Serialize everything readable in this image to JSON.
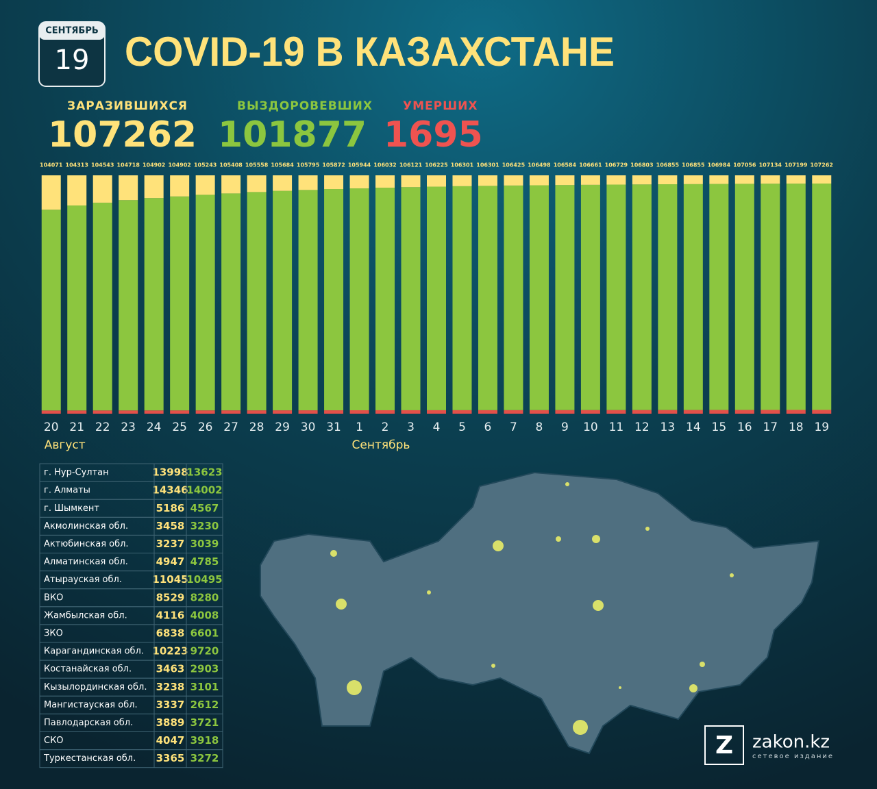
{
  "chart_data": {
    "type": "stacked-share-bar",
    "date_month": "СЕНТЯБРЬ",
    "date_day": "19",
    "title": "COVID-19 В КАЗАХСТАНЕ",
    "stats": [
      {
        "label": "ЗАРАЗИВШИХСЯ",
        "value": 107262,
        "color": "#ffe27a"
      },
      {
        "label": "ВЫЗДОРОВЕВШИХ",
        "value": 101877,
        "color": "#8cc63f"
      },
      {
        "label": "УМЕРШИХ",
        "value": 1695,
        "color": "#ef5350"
      }
    ],
    "categories": [
      "20",
      "21",
      "22",
      "23",
      "24",
      "25",
      "26",
      "27",
      "28",
      "29",
      "30",
      "31",
      "1",
      "2",
      "3",
      "4",
      "5",
      "6",
      "7",
      "8",
      "9",
      "10",
      "11",
      "12",
      "13",
      "14",
      "15",
      "16",
      "17",
      "18",
      "19"
    ],
    "x_group_labels": [
      "Август",
      "Сентябрь"
    ],
    "totals": [
      104071,
      104313,
      104543,
      104718,
      104902,
      104902,
      105243,
      105408,
      105558,
      105684,
      105795,
      105872,
      105944,
      106032,
      106121,
      106225,
      106301,
      106301,
      106425,
      106498,
      106584,
      106661,
      106729,
      106803,
      106855,
      106855,
      106984,
      107056,
      107134,
      107199,
      107262
    ],
    "series": [
      {
        "color": "#e4504a",
        "values": [
          1400,
          1410,
          1420,
          1430,
          1440,
          1450,
          1460,
          1470,
          1480,
          1490,
          1500,
          1510,
          1520,
          1530,
          1540,
          1550,
          1560,
          1570,
          1580,
          1590,
          1600,
          1610,
          1620,
          1630,
          1640,
          1650,
          1660,
          1670,
          1680,
          1690,
          1695
        ]
      },
      {
        "color": "#8cc63f",
        "values": [
          87671,
          89703,
          91123,
          92388,
          93462,
          94152,
          95183,
          95938,
          96678,
          97294,
          97795,
          98262,
          98624,
          99002,
          99331,
          99625,
          99891,
          100031,
          100295,
          100458,
          100634,
          100801,
          100959,
          101093,
          101215,
          101255,
          101444,
          101566,
          101684,
          101779,
          101877
        ]
      },
      {
        "color": "#ffe27a",
        "values": [
          15000,
          13200,
          12000,
          10900,
          10000,
          9300,
          8600,
          8000,
          7400,
          6900,
          6500,
          6100,
          5800,
          5500,
          5250,
          5050,
          4850,
          4700,
          4550,
          4450,
          4350,
          4250,
          4150,
          4080,
          4000,
          3950,
          3880,
          3820,
          3770,
          3730,
          3690
        ]
      }
    ],
    "table": {
      "rows": [
        [
          "г. Нур-Султан",
          "13998",
          "13623"
        ],
        [
          "г. Алматы",
          "14346",
          "14002"
        ],
        [
          "г. Шымкент",
          "5186",
          "4567"
        ],
        [
          "Акмолинская обл.",
          "3458",
          "3230"
        ],
        [
          "Актюбинская обл.",
          "3237",
          "3039"
        ],
        [
          "Алматинская обл.",
          "4947",
          "4785"
        ],
        [
          "Атырауская обл.",
          "11045",
          "10495"
        ],
        [
          "ВКО",
          "8529",
          "8280"
        ],
        [
          "Жамбылская обл.",
          "4116",
          "4008"
        ],
        [
          "ЗКО",
          "6838",
          "6601"
        ],
        [
          "Карагандинская обл.",
          "10223",
          "9720"
        ],
        [
          "Костанайская обл.",
          "3463",
          "2903"
        ],
        [
          "Кызылординская обл.",
          "3238",
          "3101"
        ],
        [
          "Мангистауская обл.",
          "3337",
          "2612"
        ],
        [
          "Павлодарская обл.",
          "3889",
          "3721"
        ],
        [
          "СКО",
          "4047",
          "3918"
        ],
        [
          "Туркестанская обл.",
          "3365",
          "3272"
        ]
      ]
    },
    "logo": {
      "letter": "Z",
      "name": "zakon.kz",
      "tagline": "сетевое издание"
    }
  }
}
